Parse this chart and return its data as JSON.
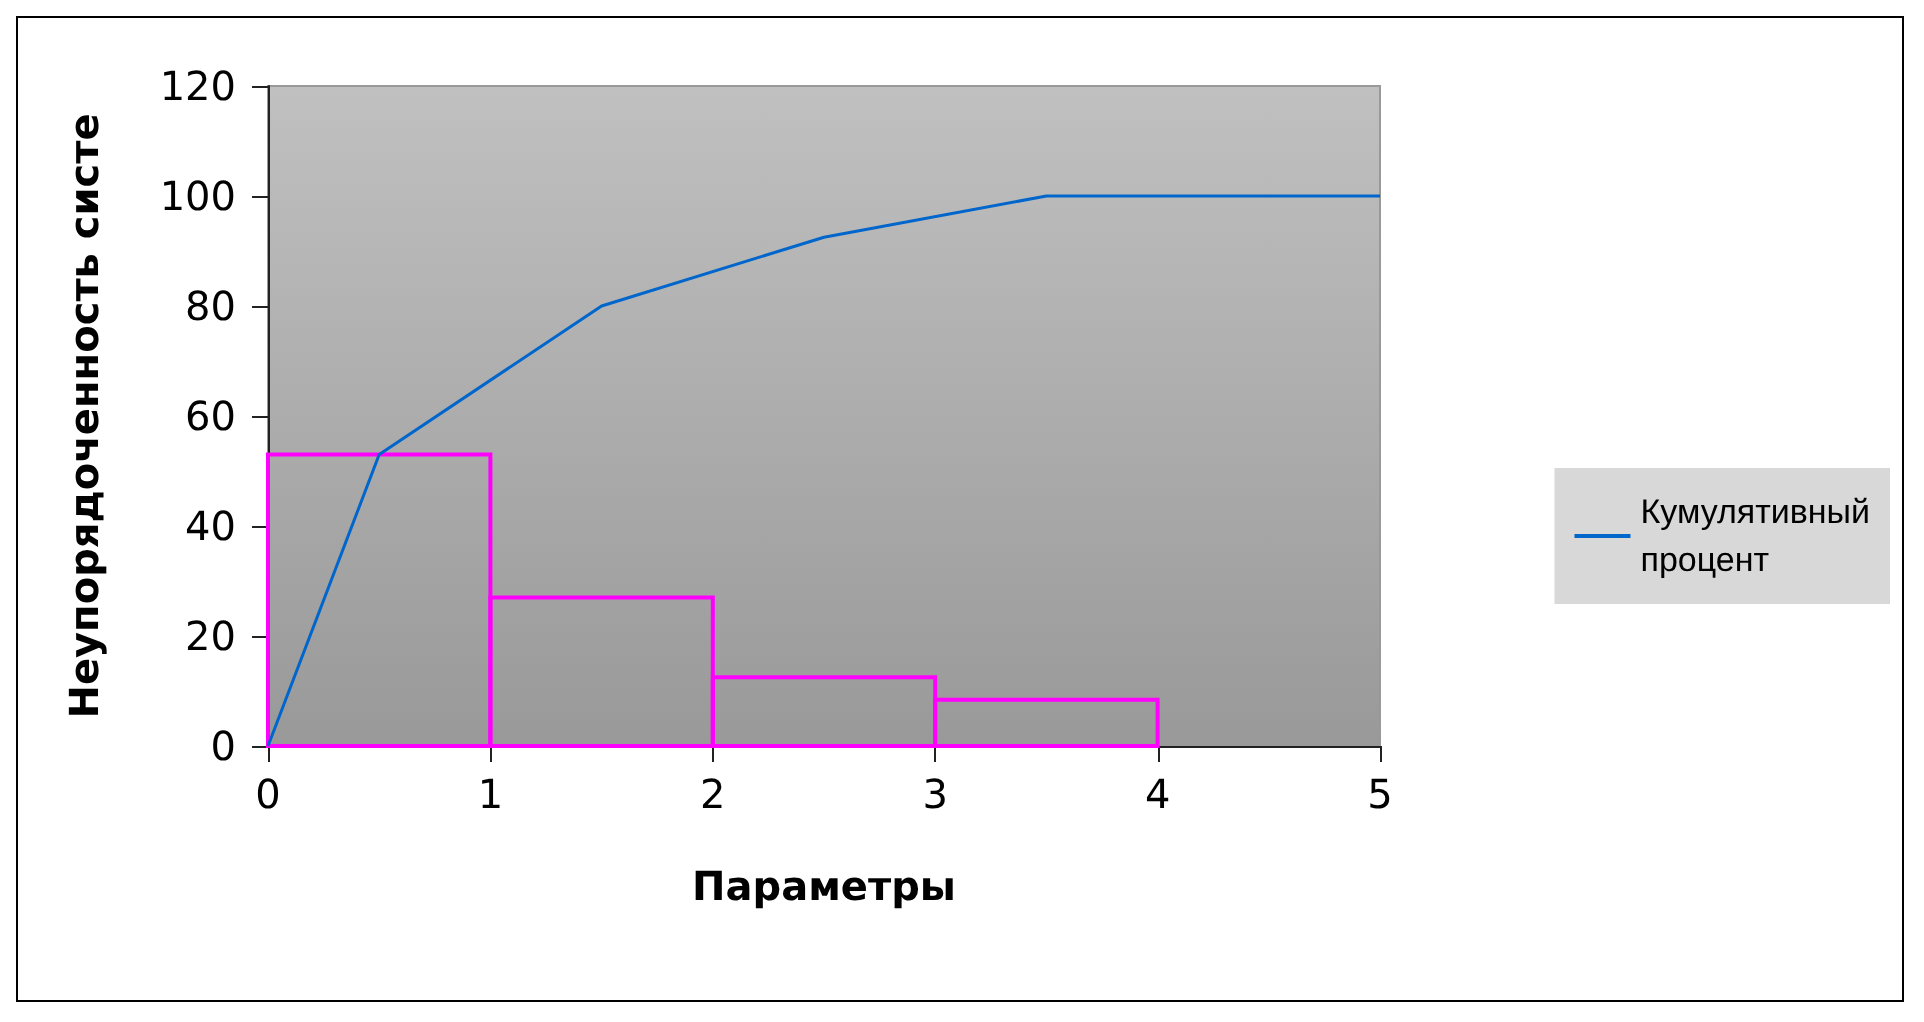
{
  "chart_data": {
    "type": "histogram",
    "xlabel": "Параметры",
    "ylabel": "Неупорядоченность систе",
    "xlim": [
      0,
      5
    ],
    "xticks": [
      0,
      1,
      2,
      3,
      4,
      5
    ],
    "ylim": [
      0,
      120
    ],
    "yticks": [
      0,
      20,
      40,
      60,
      80,
      100,
      120
    ],
    "grid": false,
    "legend": "right",
    "series": [
      {
        "color": "#ff00ff",
        "bins": [
          0,
          1,
          2,
          3,
          4
        ],
        "values": [
          53,
          27,
          12.5,
          8.4
        ]
      },
      {
        "type": "line",
        "name": "Кумулятивный процент",
        "color": "#0066cc",
        "x": [
          0,
          0.5,
          1.5,
          2.5,
          3.5,
          5
        ],
        "values": [
          0,
          53,
          80,
          92.5,
          100,
          100
        ]
      }
    ]
  }
}
